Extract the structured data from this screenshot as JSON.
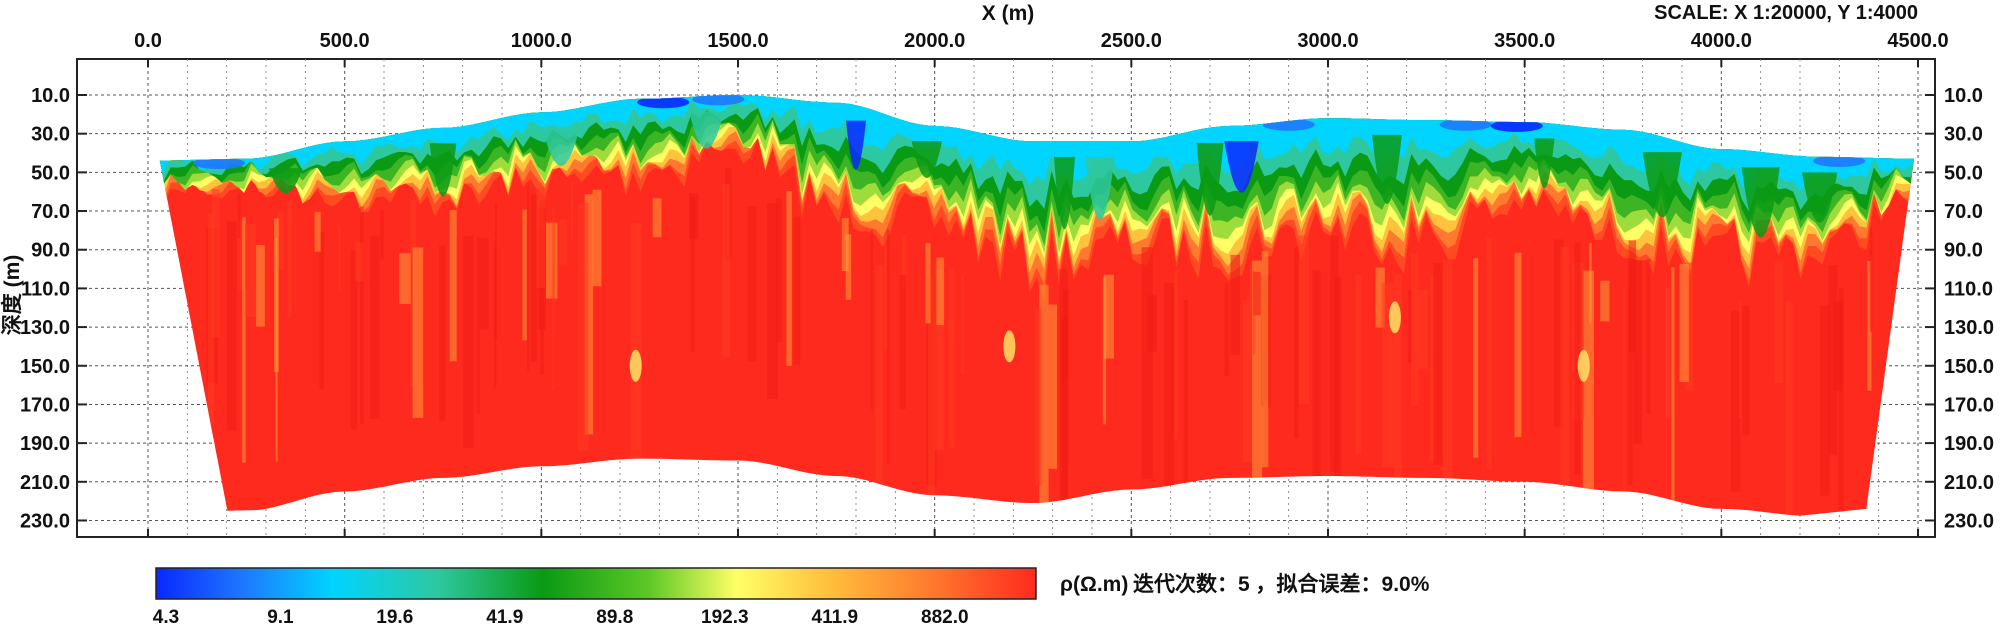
{
  "chart_data": {
    "type": "heatmap",
    "title": "",
    "xlabel": "X (m)",
    "ylabel": "深度 (m)",
    "scale_label": "SCALE: X 1:20000, Y 1:4000",
    "xlim": [
      0,
      4500
    ],
    "ylim": [
      0,
      236
    ],
    "x_ticks": [
      "0.0",
      "500.0",
      "1000.0",
      "1500.0",
      "2000.0",
      "2500.0",
      "3000.0",
      "3500.0",
      "4000.0",
      "4500.0"
    ],
    "y_ticks": [
      "10.0",
      "30.0",
      "50.0",
      "70.0",
      "90.0",
      "110.0",
      "130.0",
      "150.0",
      "170.0",
      "190.0",
      "210.0",
      "230.0"
    ],
    "grid": true,
    "section_x": [
      0,
      250,
      500,
      750,
      1000,
      1250,
      1500,
      1750,
      2000,
      2250,
      2500,
      2750,
      3000,
      3250,
      3500,
      3750,
      4000,
      4250,
      4500
    ],
    "surface_depth": [
      44,
      43,
      34,
      27,
      19,
      12,
      10,
      14,
      26,
      34,
      34,
      26,
      22,
      23,
      24,
      28,
      38,
      42,
      43
    ],
    "bottom_depth": [
      44,
      225,
      215,
      208,
      202,
      198,
      199,
      207,
      217,
      221,
      214,
      208,
      207,
      208,
      210,
      215,
      224,
      228,
      43
    ],
    "conductive_layer_base": [
      60,
      58,
      62,
      64,
      55,
      50,
      38,
      70,
      75,
      98,
      88,
      90,
      78,
      85,
      65,
      85,
      95,
      90,
      62
    ],
    "colorbar": {
      "label": "ρ(Ω.m)",
      "ticks": [
        "4.3",
        "9.1",
        "19.6",
        "41.9",
        "89.8",
        "192.3",
        "411.9",
        "882.0"
      ],
      "colors": [
        "#0a28ff",
        "#1e78ff",
        "#00d4ff",
        "#2ec8a0",
        "#0a9a14",
        "#5cc826",
        "#ffff66",
        "#ffc23c",
        "#ff7a2e",
        "#ff2a1e"
      ]
    },
    "iteration_label": "迭代次数：5 ，拟合误差：9.0%"
  }
}
